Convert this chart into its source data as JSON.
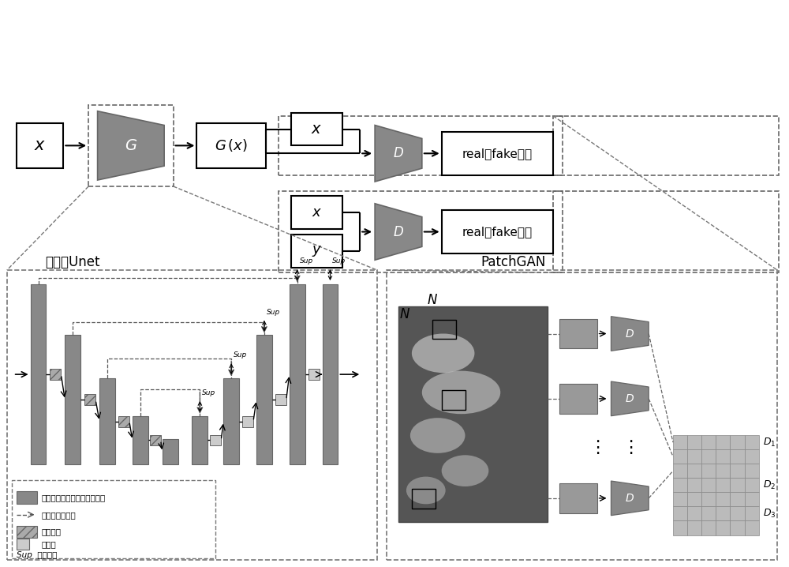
{
  "bg": "#ffffff",
  "gray": "#888888",
  "dark_gray": "#666666",
  "bar_gray": "#888888",
  "bar_ec": "#666666",
  "title_unet": "改进的Unet",
  "title_patchgan": "PatchGAN",
  "label_real_fake": "real或fake矩阵",
  "legend_conv": "卷积＋批量正规化＋激活函数",
  "legend_skip": "全尺度跳跃连接",
  "legend_pool": "最大池化",
  "legend_deconv": "反卷积",
  "legend_sup": "Sup  深度监督"
}
